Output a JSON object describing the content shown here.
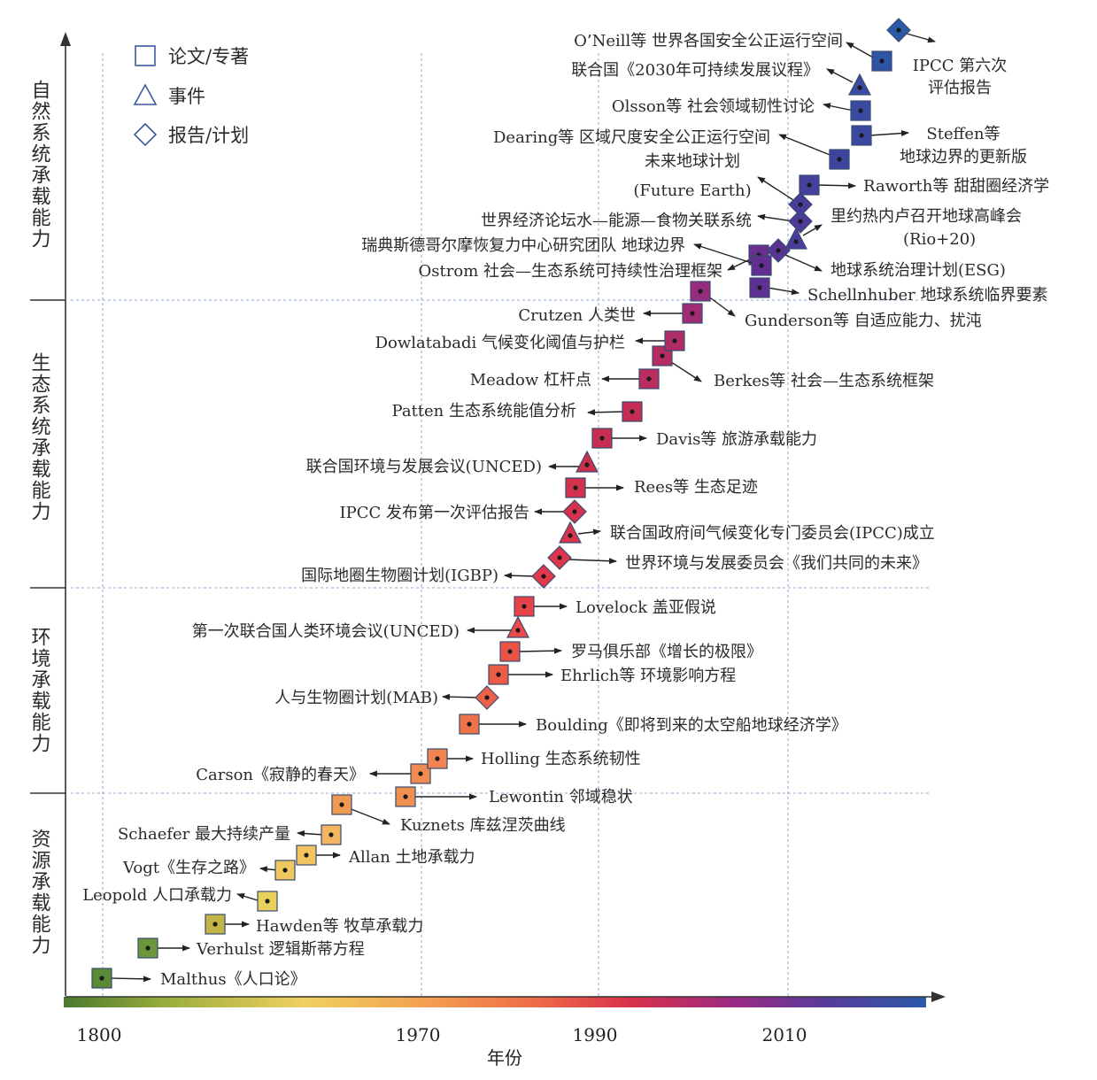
{
  "legend": [
    {
      "shape": "square",
      "label": "论文/专著"
    },
    {
      "shape": "triangle",
      "label": "事件"
    },
    {
      "shape": "diamond",
      "label": "报告/计划"
    }
  ],
  "stages": [
    {
      "label": "自然系统承载能力"
    },
    {
      "label": "生态系统承载能力"
    },
    {
      "label": "环境承载能力"
    },
    {
      "label": "资源承载能力"
    }
  ],
  "x_axis": {
    "title": "年份",
    "tick_labels": [
      "1800",
      "1970",
      "1990",
      "2010"
    ]
  },
  "colors": {
    "gradient": [
      "#4a7a2e",
      "#c9c94a",
      "#f0d060",
      "#f2a050",
      "#e8504a",
      "#d0304a",
      "#8a2a88",
      "#5a3a9a",
      "#2a5aa8"
    ],
    "axis": "#333333",
    "guide": "#8aa6d6"
  },
  "events": [
    {
      "shape": "square",
      "label": "Malthus《人口论》"
    },
    {
      "shape": "square",
      "label": "Verhulst 逻辑斯蒂方程"
    },
    {
      "shape": "square",
      "label": "Hawden等 牧草承载力"
    },
    {
      "shape": "square",
      "label": "Leopold 人口承载力"
    },
    {
      "shape": "square",
      "label": "Vogt《生存之路》"
    },
    {
      "shape": "square",
      "label": "Allan 土地承载力"
    },
    {
      "shape": "square",
      "label": "Schaefer 最大持续产量"
    },
    {
      "shape": "square",
      "label": "Kuznets 库兹涅茨曲线"
    },
    {
      "shape": "square",
      "label": "Lewontin 邻域稳状"
    },
    {
      "shape": "square",
      "label": "Carson《寂静的春天》"
    },
    {
      "shape": "square",
      "label": "Holling 生态系统韧性"
    },
    {
      "shape": "square",
      "label": "Boulding《即将到来的太空船地球经济学》"
    },
    {
      "shape": "diamond",
      "label": "人与生物圈计划(MAB)"
    },
    {
      "shape": "square",
      "label": "Ehrlich等 环境影响方程"
    },
    {
      "shape": "square",
      "label": "罗马俱乐部《增长的极限》"
    },
    {
      "shape": "triangle",
      "label": "第一次联合国人类环境会议(UNCED)"
    },
    {
      "shape": "square",
      "label": "Lovelock 盖亚假说"
    },
    {
      "shape": "diamond",
      "label": "国际地圈生物圈计划(IGBP)"
    },
    {
      "shape": "diamond",
      "label": "世界环境与发展委员会《我们共同的未来》"
    },
    {
      "shape": "triangle",
      "label": "联合国政府间气候变化专门委员会(IPCC)成立"
    },
    {
      "shape": "diamond",
      "label": "IPCC 发布第一次评估报告"
    },
    {
      "shape": "square",
      "label": "Rees等 生态足迹"
    },
    {
      "shape": "triangle",
      "label": "联合国环境与发展会议(UNCED)"
    },
    {
      "shape": "square",
      "label": "Davis等 旅游承载能力"
    },
    {
      "shape": "square",
      "label": "Patten 生态系统能值分析"
    },
    {
      "shape": "square",
      "label": "Meadow 杠杆点"
    },
    {
      "shape": "square",
      "label": "Berkes等 社会—生态系统框架"
    },
    {
      "shape": "square",
      "label": "Dowlatabadi 气候变化阈值与护栏"
    },
    {
      "shape": "square",
      "label": "Crutzen 人类世"
    },
    {
      "shape": "square",
      "label": "Gunderson等 自适应能力、扰沌"
    },
    {
      "shape": "square",
      "label": "Ostrom 社会—生态系统可持续性治理框架"
    },
    {
      "shape": "square",
      "label": "Schellnhuber 地球系统临界要素"
    },
    {
      "shape": "square",
      "label": "瑞典斯德哥尔摩恢复力中心研究团队 地球边界"
    },
    {
      "shape": "diamond",
      "label": "地球系统治理计划(ESG)"
    },
    {
      "shape": "triangle",
      "label": "里约热内卢召开地球高峰会(Rio+20)"
    },
    {
      "shape": "diamond",
      "label": "世界经济论坛水—能源—食物关联系统"
    },
    {
      "shape": "diamond",
      "label": "未来地球计划(Future Earth)"
    },
    {
      "shape": "square",
      "label": "Raworth等 甜甜圈经济学"
    },
    {
      "shape": "square",
      "label": "Dearing等 区域尺度安全公正运行空间"
    },
    {
      "shape": "square",
      "label": "Steffen等 地球边界的更新版"
    },
    {
      "shape": "square",
      "label": "Olsson等 社会领域韧性讨论"
    },
    {
      "shape": "triangle",
      "label": "联合国《2030年可持续发展议程》"
    },
    {
      "shape": "square",
      "label": "O’Neill等 世界各国安全公正运行空间"
    },
    {
      "shape": "diamond",
      "label": "IPCC 第六次评估报告"
    }
  ]
}
